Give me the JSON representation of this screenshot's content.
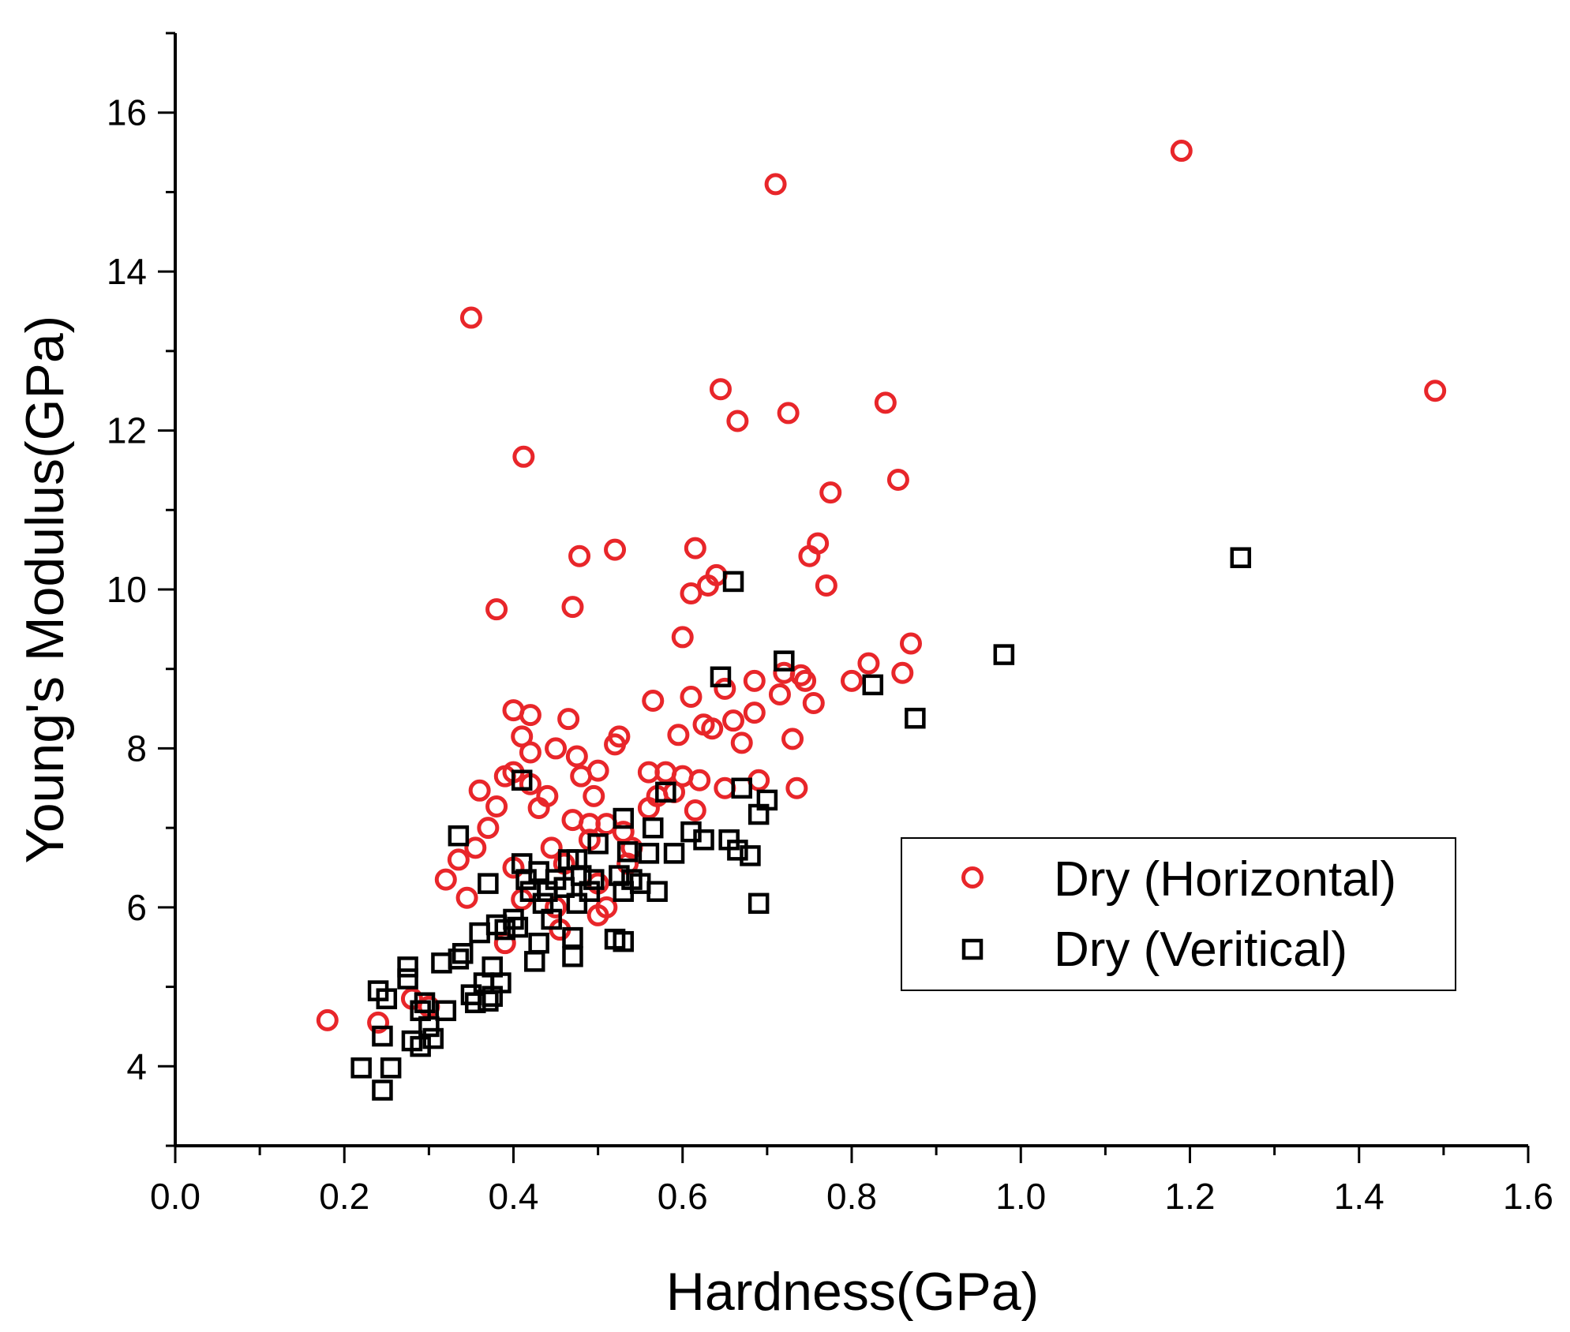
{
  "chart_data": {
    "type": "scatter",
    "title": "",
    "xlabel": "Hardness(GPa)",
    "ylabel": "Young's Modulus(GPa)",
    "xlim": [
      0.0,
      1.6
    ],
    "ylim": [
      3.0,
      17.0
    ],
    "x_ticks": [
      "0.0",
      "0.2",
      "0.4",
      "0.6",
      "0.8",
      "1.0",
      "1.2",
      "1.4",
      "1.6"
    ],
    "y_ticks": [
      "4",
      "6",
      "8",
      "10",
      "12",
      "14",
      "16"
    ],
    "legend_position": "center-right",
    "grid": false,
    "series": [
      {
        "name": "Dry (Horizontal)",
        "marker": "circle",
        "color": "#e8262a",
        "points": [
          [
            0.18,
            4.58
          ],
          [
            0.24,
            4.55
          ],
          [
            0.28,
            4.85
          ],
          [
            0.3,
            4.75
          ],
          [
            0.32,
            6.35
          ],
          [
            0.335,
            6.6
          ],
          [
            0.345,
            6.12
          ],
          [
            0.355,
            6.75
          ],
          [
            0.36,
            7.47
          ],
          [
            0.37,
            7.0
          ],
          [
            0.35,
            13.42
          ],
          [
            0.38,
            9.75
          ],
          [
            0.38,
            7.27
          ],
          [
            0.39,
            7.65
          ],
          [
            0.39,
            5.55
          ],
          [
            0.4,
            8.48
          ],
          [
            0.4,
            7.7
          ],
          [
            0.41,
            8.15
          ],
          [
            0.4,
            6.5
          ],
          [
            0.41,
            6.1
          ],
          [
            0.412,
            11.67
          ],
          [
            0.42,
            8.42
          ],
          [
            0.42,
            7.95
          ],
          [
            0.42,
            7.55
          ],
          [
            0.43,
            7.25
          ],
          [
            0.44,
            7.4
          ],
          [
            0.445,
            6.75
          ],
          [
            0.45,
            8.0
          ],
          [
            0.45,
            6.0
          ],
          [
            0.455,
            5.72
          ],
          [
            0.46,
            6.55
          ],
          [
            0.465,
            8.37
          ],
          [
            0.47,
            9.78
          ],
          [
            0.47,
            7.1
          ],
          [
            0.475,
            7.9
          ],
          [
            0.478,
            10.42
          ],
          [
            0.48,
            7.65
          ],
          [
            0.49,
            7.05
          ],
          [
            0.49,
            6.85
          ],
          [
            0.495,
            7.4
          ],
          [
            0.5,
            7.72
          ],
          [
            0.5,
            6.3
          ],
          [
            0.5,
            5.9
          ],
          [
            0.51,
            7.05
          ],
          [
            0.51,
            6.0
          ],
          [
            0.52,
            8.05
          ],
          [
            0.52,
            10.5
          ],
          [
            0.525,
            8.15
          ],
          [
            0.53,
            6.95
          ],
          [
            0.535,
            6.55
          ],
          [
            0.54,
            6.75
          ],
          [
            0.56,
            7.7
          ],
          [
            0.56,
            7.25
          ],
          [
            0.565,
            8.6
          ],
          [
            0.57,
            7.4
          ],
          [
            0.58,
            7.7
          ],
          [
            0.59,
            7.45
          ],
          [
            0.595,
            8.17
          ],
          [
            0.6,
            7.65
          ],
          [
            0.6,
            9.4
          ],
          [
            0.61,
            8.65
          ],
          [
            0.61,
            9.95
          ],
          [
            0.615,
            7.22
          ],
          [
            0.615,
            10.52
          ],
          [
            0.62,
            7.6
          ],
          [
            0.625,
            8.3
          ],
          [
            0.63,
            10.05
          ],
          [
            0.635,
            8.25
          ],
          [
            0.64,
            10.18
          ],
          [
            0.645,
            12.52
          ],
          [
            0.65,
            8.75
          ],
          [
            0.65,
            7.5
          ],
          [
            0.66,
            8.35
          ],
          [
            0.665,
            12.12
          ],
          [
            0.67,
            8.07
          ],
          [
            0.685,
            8.85
          ],
          [
            0.685,
            8.45
          ],
          [
            0.69,
            7.6
          ],
          [
            0.71,
            15.1
          ],
          [
            0.715,
            8.68
          ],
          [
            0.72,
            8.95
          ],
          [
            0.725,
            12.22
          ],
          [
            0.73,
            8.12
          ],
          [
            0.735,
            7.5
          ],
          [
            0.74,
            8.92
          ],
          [
            0.745,
            8.85
          ],
          [
            0.75,
            10.42
          ],
          [
            0.755,
            8.57
          ],
          [
            0.76,
            10.58
          ],
          [
            0.77,
            10.05
          ],
          [
            0.775,
            11.22
          ],
          [
            0.8,
            8.85
          ],
          [
            0.82,
            9.07
          ],
          [
            0.84,
            12.35
          ],
          [
            0.855,
            11.38
          ],
          [
            0.86,
            8.95
          ],
          [
            0.87,
            9.32
          ],
          [
            1.19,
            15.52
          ],
          [
            1.49,
            12.5
          ]
        ]
      },
      {
        "name": "Dry (Veritical)",
        "marker": "square",
        "color": "#000000",
        "points": [
          [
            0.22,
            3.98
          ],
          [
            0.24,
            4.95
          ],
          [
            0.245,
            3.7
          ],
          [
            0.245,
            4.38
          ],
          [
            0.25,
            4.85
          ],
          [
            0.255,
            3.98
          ],
          [
            0.275,
            5.25
          ],
          [
            0.275,
            5.1
          ],
          [
            0.28,
            4.32
          ],
          [
            0.29,
            4.25
          ],
          [
            0.29,
            4.7
          ],
          [
            0.295,
            4.8
          ],
          [
            0.3,
            4.5
          ],
          [
            0.305,
            4.35
          ],
          [
            0.315,
            5.3
          ],
          [
            0.32,
            4.7
          ],
          [
            0.335,
            5.35
          ],
          [
            0.335,
            6.9
          ],
          [
            0.34,
            5.42
          ],
          [
            0.35,
            4.9
          ],
          [
            0.355,
            4.8
          ],
          [
            0.36,
            5.68
          ],
          [
            0.365,
            5.05
          ],
          [
            0.37,
            4.82
          ],
          [
            0.37,
            6.3
          ],
          [
            0.375,
            5.25
          ],
          [
            0.375,
            4.88
          ],
          [
            0.38,
            5.78
          ],
          [
            0.385,
            5.05
          ],
          [
            0.39,
            5.72
          ],
          [
            0.4,
            5.85
          ],
          [
            0.405,
            5.75
          ],
          [
            0.41,
            7.6
          ],
          [
            0.41,
            6.55
          ],
          [
            0.415,
            6.35
          ],
          [
            0.42,
            6.2
          ],
          [
            0.425,
            5.32
          ],
          [
            0.43,
            5.55
          ],
          [
            0.43,
            6.45
          ],
          [
            0.435,
            6.05
          ],
          [
            0.44,
            6.2
          ],
          [
            0.445,
            5.85
          ],
          [
            0.45,
            6.35
          ],
          [
            0.46,
            6.25
          ],
          [
            0.465,
            6.6
          ],
          [
            0.47,
            5.38
          ],
          [
            0.47,
            5.62
          ],
          [
            0.475,
            6.6
          ],
          [
            0.475,
            6.05
          ],
          [
            0.48,
            6.4
          ],
          [
            0.49,
            6.2
          ],
          [
            0.495,
            6.35
          ],
          [
            0.5,
            6.8
          ],
          [
            0.52,
            5.6
          ],
          [
            0.525,
            6.4
          ],
          [
            0.53,
            5.57
          ],
          [
            0.53,
            6.2
          ],
          [
            0.53,
            7.12
          ],
          [
            0.535,
            6.7
          ],
          [
            0.54,
            6.35
          ],
          [
            0.55,
            6.3
          ],
          [
            0.56,
            6.68
          ],
          [
            0.565,
            7.0
          ],
          [
            0.57,
            6.2
          ],
          [
            0.58,
            7.45
          ],
          [
            0.59,
            6.68
          ],
          [
            0.61,
            6.95
          ],
          [
            0.625,
            6.85
          ],
          [
            0.645,
            8.9
          ],
          [
            0.655,
            6.85
          ],
          [
            0.66,
            10.1
          ],
          [
            0.665,
            6.72
          ],
          [
            0.67,
            7.5
          ],
          [
            0.68,
            6.65
          ],
          [
            0.69,
            7.17
          ],
          [
            0.69,
            6.05
          ],
          [
            0.7,
            7.35
          ],
          [
            0.72,
            9.1
          ],
          [
            0.825,
            8.8
          ],
          [
            0.875,
            8.38
          ],
          [
            0.98,
            9.18
          ],
          [
            1.26,
            10.4
          ]
        ]
      }
    ]
  }
}
